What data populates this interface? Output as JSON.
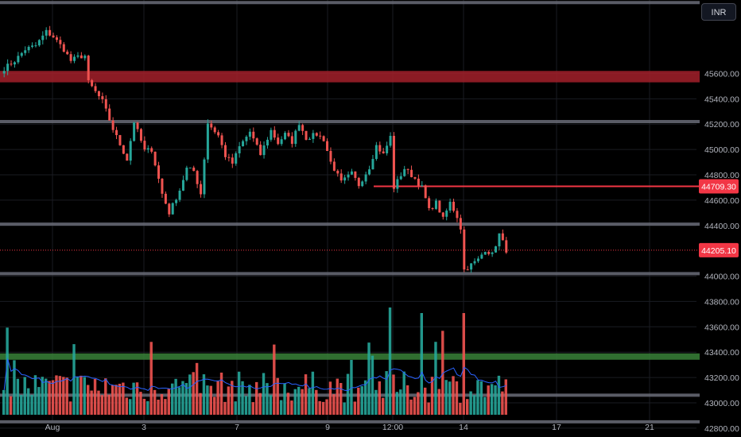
{
  "toolbar": {
    "currency": "INR"
  },
  "colors": {
    "up": "#26a69a",
    "down": "#ef5350",
    "zone_red": "#a3202a",
    "zone_green": "#3c8a3c",
    "level_line": "#6a6d78",
    "last_price": "#f23645",
    "volume_ma": "#2962ff",
    "grid": "#1a1c22"
  },
  "chart_data": {
    "type": "candlestick",
    "price_axis": {
      "min": 42730,
      "max": 46180,
      "ticks": [
        "45600.00",
        "45400.00",
        "45200.00",
        "45000.00",
        "44800.00",
        "44600.00",
        "44400.00",
        "44000.00",
        "43800.00",
        "43600.00",
        "43400.00",
        "43200.00",
        "43000.00",
        "42800.00"
      ]
    },
    "time_axis": {
      "labels": [
        "Aug",
        "3",
        "7",
        "9",
        "12:00",
        "14",
        "17",
        "21"
      ]
    },
    "price_tags": [
      {
        "value": "44709.30",
        "kind": "horizontal-line"
      },
      {
        "value": "44205.10",
        "kind": "last-price"
      }
    ],
    "zones": [
      {
        "name": "resistance-zone",
        "color": "red",
        "from": 45530,
        "to": 45620
      },
      {
        "name": "support-zone",
        "color": "green",
        "from": 43340,
        "to": 43390
      }
    ],
    "levels": [
      46160,
      45220,
      44410,
      44020,
      43060,
      42850
    ],
    "last_price_value": 44205.1,
    "hline_value": 44709.3,
    "path_anchors": [
      [
        0,
        45640
      ],
      [
        3,
        45700
      ],
      [
        6,
        45790
      ],
      [
        9,
        45820
      ],
      [
        12,
        45930
      ],
      [
        14,
        45890
      ],
      [
        17,
        45790
      ],
      [
        19,
        45700
      ],
      [
        21,
        45730
      ],
      [
        23,
        45740
      ],
      [
        24,
        45530
      ],
      [
        28,
        45380
      ],
      [
        31,
        45160
      ],
      [
        35,
        44920
      ],
      [
        37,
        45220
      ],
      [
        40,
        44990
      ],
      [
        42,
        45000
      ],
      [
        45,
        44650
      ],
      [
        47,
        44500
      ],
      [
        50,
        44680
      ],
      [
        52,
        44850
      ],
      [
        54,
        44830
      ],
      [
        56,
        44650
      ],
      [
        58,
        45210
      ],
      [
        61,
        45110
      ],
      [
        63,
        44950
      ],
      [
        65,
        44890
      ],
      [
        67,
        45020
      ],
      [
        70,
        45140
      ],
      [
        73,
        44960
      ],
      [
        76,
        45150
      ],
      [
        78,
        45050
      ],
      [
        80,
        45120
      ],
      [
        82,
        45060
      ],
      [
        84,
        45210
      ],
      [
        86,
        45090
      ],
      [
        89,
        45120
      ],
      [
        91,
        45080
      ],
      [
        93,
        44900
      ],
      [
        96,
        44740
      ],
      [
        99,
        44810
      ],
      [
        101,
        44720
      ],
      [
        104,
        44860
      ],
      [
        106,
        45030
      ],
      [
        108,
        44960
      ],
      [
        110,
        45100
      ],
      [
        111,
        44700
      ],
      [
        114,
        44850
      ],
      [
        117,
        44770
      ],
      [
        119,
        44700
      ],
      [
        121,
        44520
      ],
      [
        123,
        44580
      ],
      [
        125,
        44450
      ],
      [
        127,
        44580
      ],
      [
        129,
        44470
      ],
      [
        130,
        44380
      ],
      [
        131,
        44050
      ],
      [
        133,
        44090
      ],
      [
        135,
        44130
      ],
      [
        137,
        44210
      ],
      [
        139,
        44170
      ],
      [
        141,
        44330
      ],
      [
        143,
        44205
      ]
    ]
  }
}
